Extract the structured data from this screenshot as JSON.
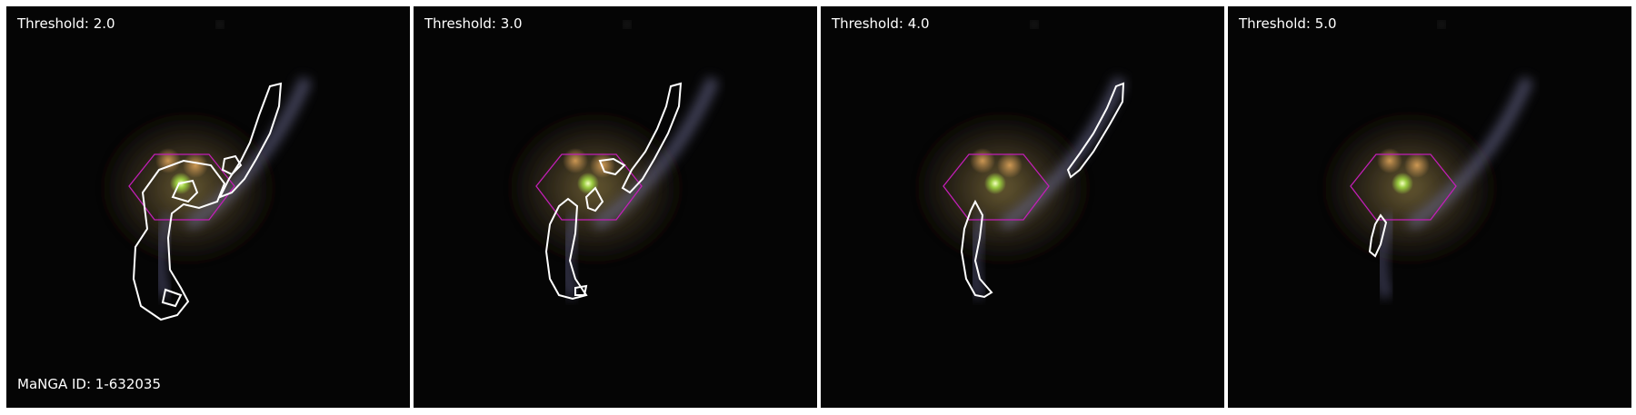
{
  "panels": [
    {
      "threshold_label": "Threshold: 2.0"
    },
    {
      "threshold_label": "Threshold: 3.0"
    },
    {
      "threshold_label": "Threshold: 4.0"
    },
    {
      "threshold_label": "Threshold: 5.0"
    }
  ],
  "manga_id_label": "MaNGA ID: 1-632035",
  "colors": {
    "contour": "#ffffff",
    "ifu_hexagon": "#c21fb6",
    "background": "#050505"
  }
}
